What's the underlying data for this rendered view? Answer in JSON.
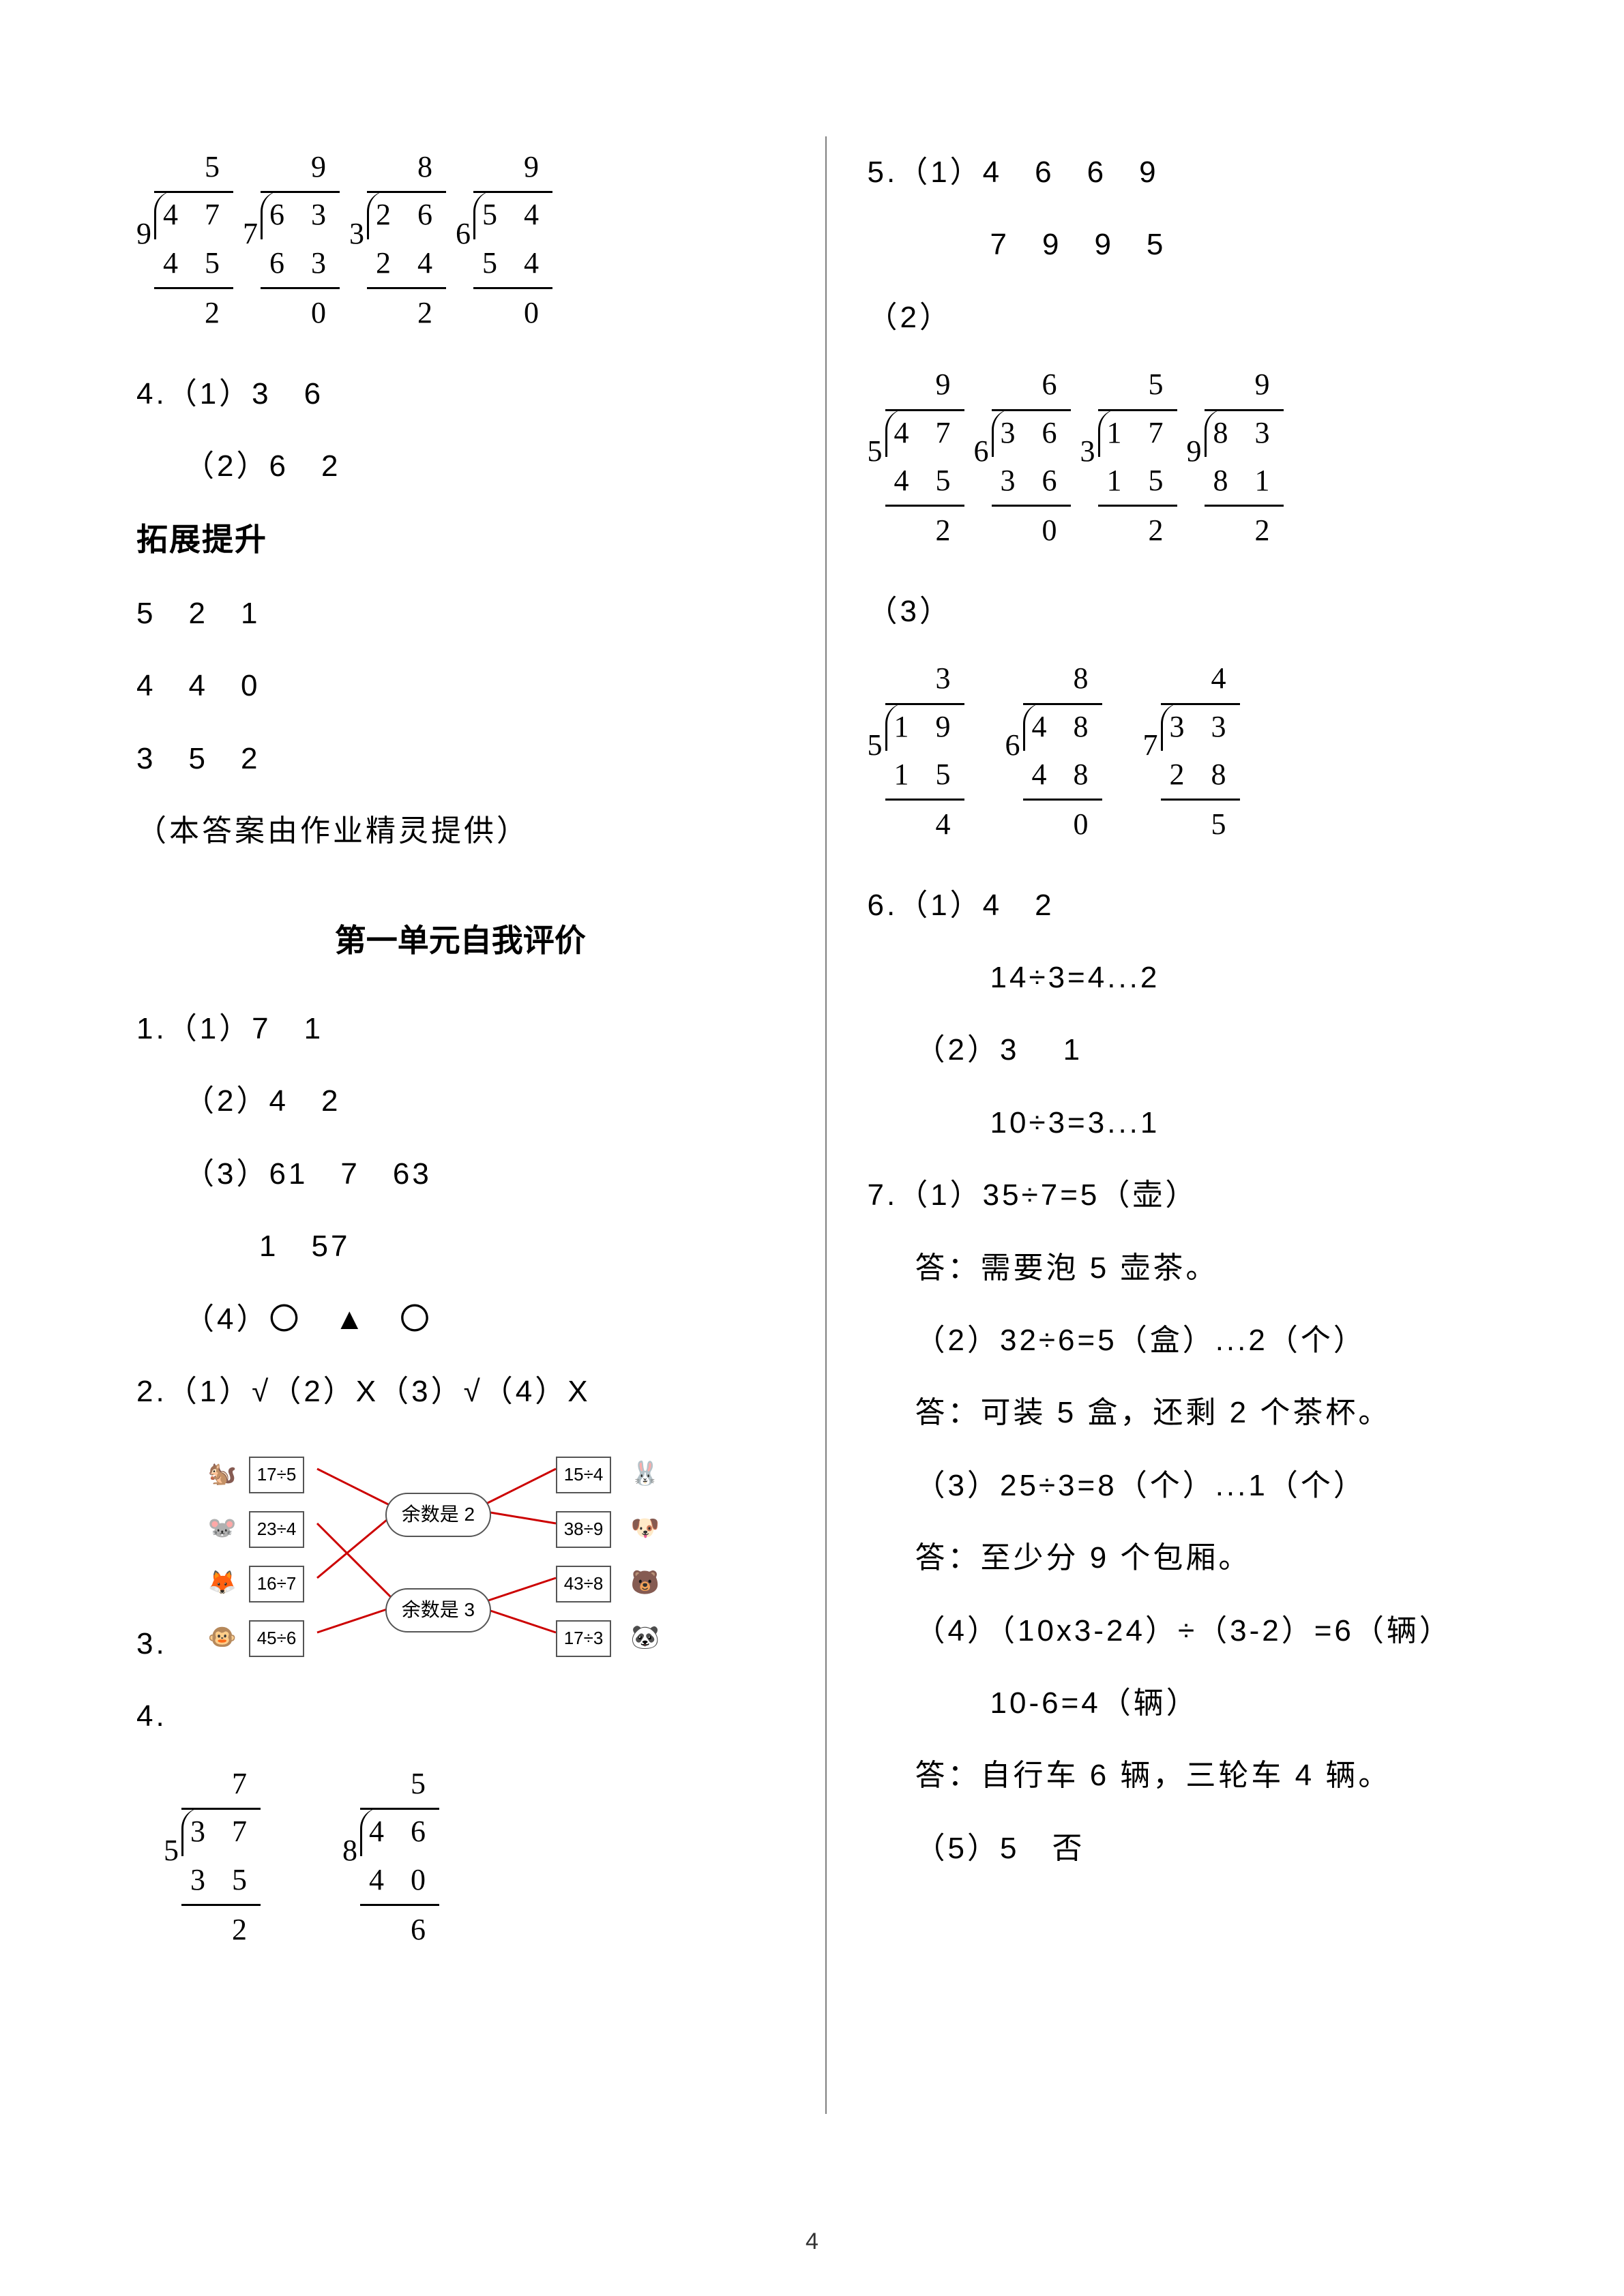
{
  "page_number": "4",
  "left": {
    "ld_top": [
      {
        "divisor": "9",
        "quotient": "5",
        "dividend": "4 7",
        "sub": "4 5",
        "rem": "2"
      },
      {
        "divisor": "7",
        "quotient": "9",
        "dividend": "6 3",
        "sub": "6 3",
        "rem": "0"
      },
      {
        "divisor": "3",
        "quotient": "8",
        "dividend": "2 6",
        "sub": "2 4",
        "rem": "2"
      },
      {
        "divisor": "6",
        "quotient": "9",
        "dividend": "5 4",
        "sub": "5 4",
        "rem": "0"
      }
    ],
    "q4_label": "4.（1）3　6",
    "q4_2": "（2）6　2",
    "expand_header": "拓展提升",
    "exp_rows": [
      "5　2　1",
      "4　4　0",
      "3　5　2"
    ],
    "credit": "（本答案由作业精灵提供）",
    "unit_title": "第一单元自我评价",
    "q1_1": "1.（1）7　1",
    "q1_2": "（2）4　2",
    "q1_3": "（3）61　7　63",
    "q1_3b": "1　57",
    "q1_4": "（4）〇　▲　〇",
    "q2": "2.（1）√（2）X（3）√（4）X",
    "q3_label": "3.",
    "q4b_label": "4.",
    "diagram": {
      "center_top": "余数是 2",
      "center_bottom": "余数是 3",
      "left_exprs": [
        "17÷5",
        "23÷4",
        "16÷7",
        "45÷6"
      ],
      "right_exprs": [
        "15÷4",
        "38÷9",
        "43÷8",
        "17÷3"
      ]
    },
    "ld_bottom": [
      {
        "divisor": "5",
        "quotient": "7",
        "dividend": "3 7",
        "sub": "3 5",
        "rem": "2"
      },
      {
        "divisor": "8",
        "quotient": "5",
        "dividend": "4 6",
        "sub": "4 0",
        "rem": "6"
      }
    ]
  },
  "right": {
    "q5_1a": "5.（1）4　6　6　9",
    "q5_1b": "7　9　9　5",
    "q5_2_label": "（2）",
    "ld_5_2": [
      {
        "divisor": "5",
        "quotient": "9",
        "dividend": "4 7",
        "sub": "4 5",
        "rem": "2"
      },
      {
        "divisor": "6",
        "quotient": "6",
        "dividend": "3 6",
        "sub": "3 6",
        "rem": "0"
      },
      {
        "divisor": "3",
        "quotient": "5",
        "dividend": "1 7",
        "sub": "1 5",
        "rem": "2"
      },
      {
        "divisor": "9",
        "quotient": "9",
        "dividend": "8 3",
        "sub": "8 1",
        "rem": "2"
      }
    ],
    "q5_3_label": "（3）",
    "ld_5_3": [
      {
        "divisor": "5",
        "quotient": "3",
        "dividend": "1 9",
        "sub": "1 5",
        "rem": "4"
      },
      {
        "divisor": "6",
        "quotient": "8",
        "dividend": "4 8",
        "sub": "4 8",
        "rem": "0"
      },
      {
        "divisor": "7",
        "quotient": "4",
        "dividend": "3 3",
        "sub": "2 8",
        "rem": "5"
      }
    ],
    "q6_1": "6.（1）4　2",
    "q6_1_eq": "14÷3=4...2",
    "q6_2": "（2）3　 1",
    "q6_2_eq": "10÷3=3...1",
    "q7_1": "7.（1）35÷7=5（壶）",
    "q7_1_ans": "答：需要泡 5 壶茶。",
    "q7_2": "（2）32÷6=5（盒）...2（个）",
    "q7_2_ans": "答：可装 5 盒，还剩 2 个茶杯。",
    "q7_3": "（3）25÷3=8（个）...1（个）",
    "q7_3_ans": "答：至少分 9 个包厢。",
    "q7_4": "（4）（10x3-24）÷（3-2）=6（辆）",
    "q7_4_eq": "10-6=4（辆）",
    "q7_4_ans": "答：自行车 6 辆，三轮车 4 辆。",
    "q7_5": "（5）5　否"
  }
}
